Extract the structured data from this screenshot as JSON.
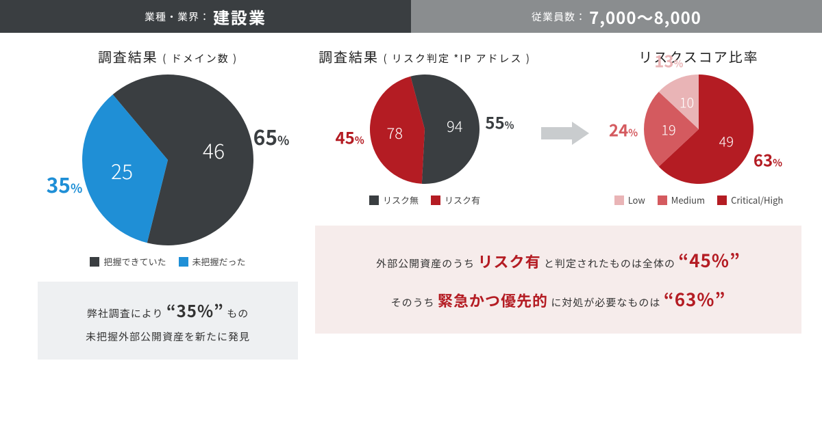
{
  "header": {
    "left_label": "業種・業界：",
    "left_value": "建設業",
    "right_label": "従業員数：",
    "right_value": "7,000〜8,000"
  },
  "colors": {
    "dark": "#3a3e41",
    "blue": "#1f8fd6",
    "red": "#b41c23",
    "red_medium": "#d45a5f",
    "red_light": "#e9b4b6",
    "arrow": "#c9ccce",
    "callout_left_bg": "#eef0f2",
    "callout_right_bg": "#f6eceb"
  },
  "chart1": {
    "type": "pie",
    "title": "調査結果",
    "title_sub": "( ドメイン数 )",
    "diameter": 250,
    "start_angle": -40,
    "slices": [
      {
        "label": "46",
        "value": 65,
        "pct_text": "65",
        "color": "#3a3e41",
        "label_fontsize": 30,
        "pct_color": "#3a3e41"
      },
      {
        "label": "25",
        "value": 35,
        "pct_text": "35",
        "color": "#1f8fd6",
        "label_fontsize": 30,
        "pct_color": "#1f8fd6"
      }
    ],
    "legend": [
      {
        "swatch": "#3a3e41",
        "text": "把握できていた"
      },
      {
        "swatch": "#1f8fd6",
        "text": "未把握だった"
      }
    ]
  },
  "chart2": {
    "type": "pie",
    "title": "調査結果",
    "title_sub": "( リスク判定 *IP アドレス )",
    "diameter": 160,
    "start_angle": -15,
    "slices": [
      {
        "label": "94",
        "value": 55,
        "pct_text": "55",
        "color": "#3a3e41",
        "label_fontsize": 22,
        "pct_color": "#3a3e41"
      },
      {
        "label": "78",
        "value": 45,
        "pct_text": "45",
        "color": "#b41c23",
        "label_fontsize": 22,
        "pct_color": "#b41c23"
      }
    ],
    "legend": [
      {
        "swatch": "#3a3e41",
        "text": "リスク無"
      },
      {
        "swatch": "#b41c23",
        "text": "リスク有"
      }
    ]
  },
  "chart3": {
    "type": "pie",
    "title": "リスクスコア比率",
    "diameter": 160,
    "start_angle": 0,
    "slices": [
      {
        "label": "49",
        "value": 63,
        "pct_text": "63",
        "color": "#b41c23",
        "label_fontsize": 20,
        "pct_color": "#b41c23"
      },
      {
        "label": "19",
        "value": 24,
        "pct_text": "24",
        "color": "#d45a5f",
        "label_fontsize": 20,
        "pct_color": "#d45a5f"
      },
      {
        "label": "10",
        "value": 13,
        "pct_text": "13",
        "color": "#e9b4b6",
        "label_fontsize": 20,
        "pct_color": "#e9b4b6"
      }
    ],
    "legend": [
      {
        "swatch": "#e9b4b6",
        "text": "Low"
      },
      {
        "swatch": "#d45a5f",
        "text": "Medium"
      },
      {
        "swatch": "#b41c23",
        "text": "Critical/High"
      }
    ]
  },
  "callout_left": {
    "line1_a": "弊社調査により",
    "line1_em": "“35%”",
    "line1_b": "もの",
    "line2": "未把握外部公開資産を新たに発見"
  },
  "callout_right": {
    "l1a": "外部公開資産のうち",
    "l1em1": "リスク有",
    "l1b": "と判定されたものは全体の",
    "l1em2": "“45%”",
    "l2a": "そのうち",
    "l2em1": "緊急かつ優先的",
    "l2b": "に対処が必要なものは",
    "l2em2": "“63%”"
  },
  "pct_unit": "%"
}
